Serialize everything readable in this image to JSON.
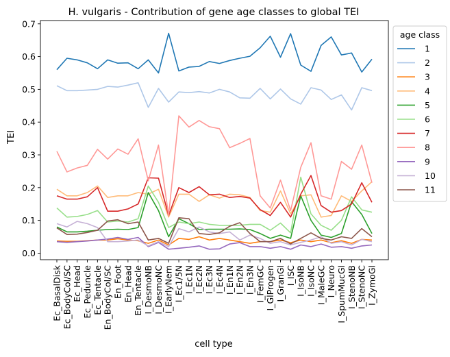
{
  "chart_data": {
    "type": "line",
    "title": "H. vulgaris - Contribution of gene age classes to global TEI",
    "xlabel": "cell type",
    "ylabel": "TEI",
    "ylim": [
      -0.02,
      0.71
    ],
    "yticks": [
      "0.0",
      "0.1",
      "0.2",
      "0.3",
      "0.4",
      "0.5",
      "0.6",
      "0.7"
    ],
    "ytick_values": [
      0.0,
      0.1,
      0.2,
      0.3,
      0.4,
      0.5,
      0.6,
      0.7
    ],
    "grid": false,
    "legend": {
      "title": "age class",
      "placement": "outside-right"
    },
    "categories": [
      "Ec_BasalDisk",
      "Ec_BodyCol/SC",
      "Ec_Head",
      "Ec_Peduncle",
      "Ec_Tentacle",
      "En_BodyCol/SC",
      "En_Foot",
      "En_Head",
      "En_Tentacle",
      "I_DesmoNB",
      "I_DesmoNC",
      "I_EarlyNem",
      "I_Ec1/5N",
      "I_Ec1N",
      "I_Ec2N",
      "I_Ec3N",
      "I_Ec4N",
      "I_En1N",
      "I_En2N",
      "I_En3N",
      "I_FemGC",
      "I_GlProgen",
      "I_GranGl",
      "I_ISC",
      "I_IsoNB",
      "I_IsoNC",
      "I_MaleGC",
      "I_Neuro",
      "I_SpumMucGl",
      "I_StenoNB",
      "I_StenoNC",
      "I_ZymoGl"
    ],
    "series": [
      {
        "name": "1",
        "color": "#1f77b4",
        "values": [
          0.56,
          0.595,
          0.59,
          0.581,
          0.563,
          0.59,
          0.58,
          0.581,
          0.563,
          0.59,
          0.55,
          0.671,
          0.556,
          0.568,
          0.57,
          0.585,
          0.579,
          0.588,
          0.595,
          0.601,
          0.627,
          0.662,
          0.598,
          0.67,
          0.574,
          0.555,
          0.634,
          0.66,
          0.605,
          0.611,
          0.553,
          0.592
        ]
      },
      {
        "name": "2",
        "color": "#aec7e8",
        "values": [
          0.511,
          0.496,
          0.496,
          0.498,
          0.5,
          0.509,
          0.507,
          0.513,
          0.52,
          0.445,
          0.503,
          0.461,
          0.492,
          0.49,
          0.493,
          0.489,
          0.5,
          0.492,
          0.474,
          0.473,
          0.503,
          0.471,
          0.501,
          0.471,
          0.455,
          0.505,
          0.498,
          0.469,
          0.483,
          0.437,
          0.505,
          0.496
        ]
      },
      {
        "name": "3",
        "color": "#ff7f0e",
        "values": [
          0.037,
          0.036,
          0.036,
          0.038,
          0.04,
          0.04,
          0.044,
          0.04,
          0.038,
          0.03,
          0.04,
          0.025,
          0.045,
          0.042,
          0.05,
          0.04,
          0.045,
          0.04,
          0.035,
          0.03,
          0.035,
          0.035,
          0.04,
          0.032,
          0.04,
          0.035,
          0.04,
          0.032,
          0.038,
          0.03,
          0.042,
          0.04
        ]
      },
      {
        "name": "4",
        "color": "#ffbb78",
        "values": [
          0.195,
          0.175,
          0.175,
          0.185,
          0.205,
          0.17,
          0.175,
          0.175,
          0.185,
          0.18,
          0.195,
          0.11,
          0.18,
          0.18,
          0.158,
          0.178,
          0.168,
          0.18,
          0.178,
          0.17,
          0.13,
          0.125,
          0.19,
          0.12,
          0.175,
          0.178,
          0.11,
          0.115,
          0.175,
          0.158,
          0.19,
          0.218
        ]
      },
      {
        "name": "5",
        "color": "#2ca02c",
        "values": [
          0.08,
          0.065,
          0.065,
          0.067,
          0.07,
          0.072,
          0.073,
          0.072,
          0.078,
          0.185,
          0.13,
          0.05,
          0.105,
          0.09,
          0.072,
          0.073,
          0.073,
          0.073,
          0.074,
          0.072,
          0.06,
          0.045,
          0.055,
          0.045,
          0.175,
          0.1,
          0.055,
          0.048,
          0.06,
          0.157,
          0.118,
          0.06
        ]
      },
      {
        "name": "6",
        "color": "#98df8a",
        "values": [
          0.138,
          0.11,
          0.112,
          0.118,
          0.13,
          0.095,
          0.098,
          0.095,
          0.105,
          0.205,
          0.155,
          0.078,
          0.095,
          0.09,
          0.095,
          0.088,
          0.085,
          0.085,
          0.085,
          0.088,
          0.088,
          0.07,
          0.092,
          0.062,
          0.232,
          0.12,
          0.085,
          0.07,
          0.1,
          0.172,
          0.132,
          0.125
        ]
      },
      {
        "name": "7",
        "color": "#d62728",
        "values": [
          0.175,
          0.165,
          0.165,
          0.172,
          0.2,
          0.128,
          0.128,
          0.135,
          0.15,
          0.23,
          0.229,
          0.115,
          0.2,
          0.185,
          0.203,
          0.178,
          0.18,
          0.17,
          0.173,
          0.168,
          0.133,
          0.115,
          0.155,
          0.11,
          0.18,
          0.237,
          0.145,
          0.125,
          0.13,
          0.15,
          0.215,
          0.155
        ]
      },
      {
        "name": "8",
        "color": "#ff9896",
        "values": [
          0.311,
          0.248,
          0.26,
          0.268,
          0.317,
          0.287,
          0.318,
          0.302,
          0.349,
          0.221,
          0.33,
          0.115,
          0.419,
          0.385,
          0.405,
          0.386,
          0.38,
          0.322,
          0.335,
          0.35,
          0.175,
          0.138,
          0.223,
          0.13,
          0.262,
          0.337,
          0.175,
          0.165,
          0.28,
          0.256,
          0.33,
          0.215
        ]
      },
      {
        "name": "9",
        "color": "#9467bd",
        "values": [
          0.035,
          0.033,
          0.035,
          0.037,
          0.04,
          0.043,
          0.048,
          0.042,
          0.048,
          0.02,
          0.033,
          0.012,
          0.015,
          0.018,
          0.022,
          0.012,
          0.013,
          0.028,
          0.032,
          0.02,
          0.02,
          0.015,
          0.02,
          0.012,
          0.025,
          0.02,
          0.028,
          0.018,
          0.02,
          0.015,
          0.022,
          0.025
        ]
      },
      {
        "name": "10",
        "color": "#c5b0d5",
        "values": [
          0.09,
          0.08,
          0.097,
          0.09,
          0.078,
          0.035,
          0.035,
          0.037,
          0.04,
          0.022,
          0.035,
          0.02,
          0.075,
          0.065,
          0.08,
          0.065,
          0.06,
          0.065,
          0.04,
          0.055,
          0.045,
          0.03,
          0.035,
          0.025,
          0.033,
          0.04,
          0.05,
          0.03,
          0.035,
          0.025,
          0.042,
          0.035
        ]
      },
      {
        "name": "11",
        "color": "#8c564b",
        "values": [
          0.077,
          0.057,
          0.058,
          0.063,
          0.07,
          0.098,
          0.102,
          0.09,
          0.095,
          0.04,
          0.045,
          0.03,
          0.108,
          0.105,
          0.06,
          0.057,
          0.062,
          0.082,
          0.093,
          0.06,
          0.035,
          0.035,
          0.045,
          0.028,
          0.045,
          0.062,
          0.045,
          0.04,
          0.05,
          0.045,
          0.075,
          0.05
        ]
      }
    ]
  }
}
